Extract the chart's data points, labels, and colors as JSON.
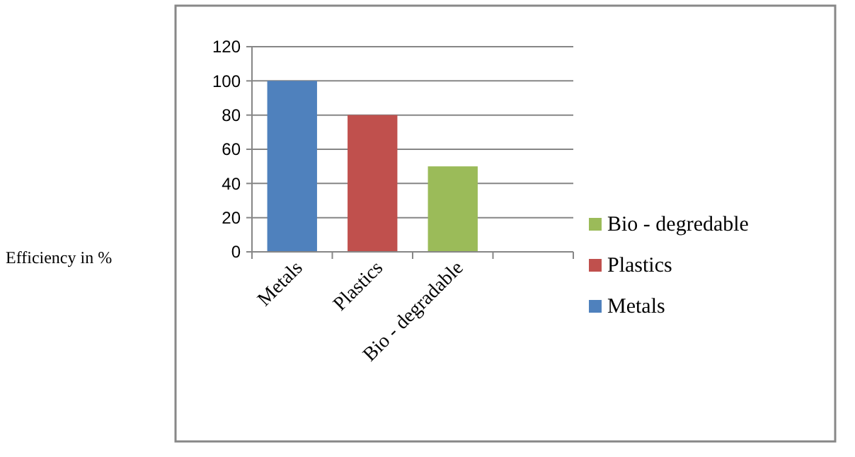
{
  "chart_data": {
    "type": "bar",
    "annotations": [
      "Efficiency in %"
    ],
    "categories": [
      "Metals",
      "Plastics",
      "Bio - degradable",
      null
    ],
    "stacked": true,
    "series": [
      {
        "name": "Metals",
        "color": "#4f81bd",
        "values": [
          100,
          null,
          null,
          null
        ]
      },
      {
        "name": "Plastics",
        "color": "#c0504d",
        "values": [
          null,
          80,
          null,
          null
        ]
      },
      {
        "name": "Bio - degredable",
        "color": "#9bbb59",
        "values": [
          null,
          null,
          50,
          null
        ]
      }
    ],
    "ylim": [
      0,
      120
    ],
    "yticks": [
      0,
      20,
      40,
      60,
      80,
      100,
      120
    ],
    "grid": "y",
    "legend": "right"
  }
}
